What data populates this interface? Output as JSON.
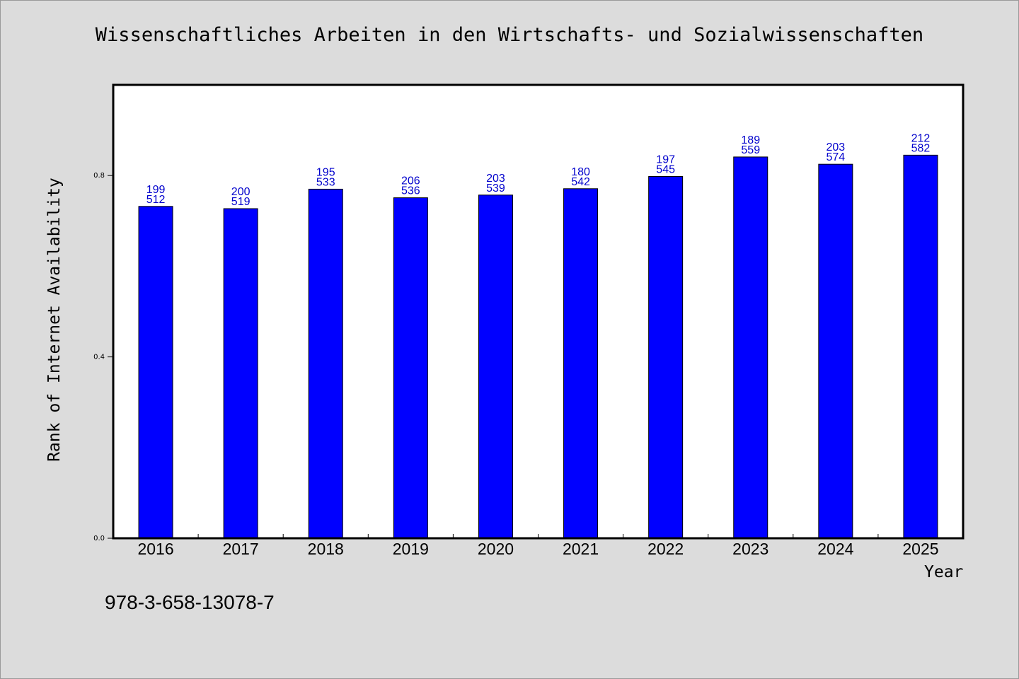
{
  "colors": {
    "background": "#dcdcdc",
    "plot_background": "#ffffff",
    "bar_fill": "#0000ff",
    "bar_label": "#0000cc"
  },
  "footer": {
    "code": "978-3-658-13078-7"
  },
  "chart_data": {
    "type": "bar",
    "title": "Wissenschaftliches Arbeiten in den Wirtschafts- und Sozialwissenschaften",
    "xlabel": "Year",
    "ylabel": "Rank of Internet Availability",
    "categories": [
      "2016",
      "2017",
      "2018",
      "2019",
      "2020",
      "2021",
      "2022",
      "2023",
      "2024",
      "2025"
    ],
    "values": [
      0.732,
      0.727,
      0.77,
      0.751,
      0.757,
      0.771,
      0.798,
      0.841,
      0.825,
      0.845
    ],
    "labels_top": [
      "199",
      "200",
      "195",
      "206",
      "203",
      "180",
      "197",
      "189",
      "203",
      "212"
    ],
    "labels_bottom": [
      "512",
      "519",
      "533",
      "536",
      "539",
      "542",
      "545",
      "559",
      "574",
      "582"
    ],
    "yticks": [
      0.0,
      0.4,
      0.8
    ],
    "ytick_labels": [
      "0.0",
      "0.4",
      "0.8"
    ],
    "ylim": [
      0,
      1.0
    ],
    "grid": false,
    "legend": "none"
  }
}
